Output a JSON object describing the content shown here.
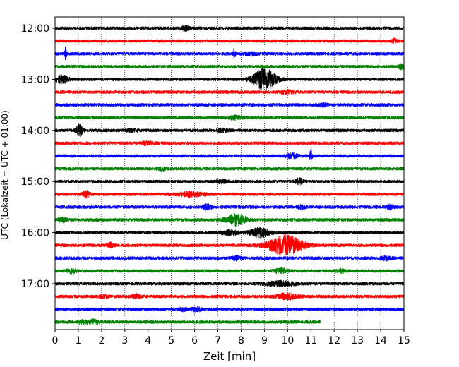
{
  "chart_data": {
    "type": "line",
    "title": "",
    "xlabel": "Zeit  [min]",
    "ylabel": "UTC (Lokalzeit = UTC + 01:00)",
    "xlim": [
      0,
      15
    ],
    "x_ticks": [
      "0",
      "1",
      "2",
      "3",
      "4",
      "5",
      "6",
      "7",
      "8",
      "9",
      "10",
      "11",
      "12",
      "13",
      "14",
      "15"
    ],
    "y_ticks": [
      {
        "label": "12:00",
        "trace_index": 0
      },
      {
        "label": "13:00",
        "trace_index": 4
      },
      {
        "label": "14:00",
        "trace_index": 8
      },
      {
        "label": "15:00",
        "trace_index": 12
      },
      {
        "label": "16:00",
        "trace_index": 16
      },
      {
        "label": "17:00",
        "trace_index": 20
      }
    ],
    "grid": "vertical dotted",
    "colors": [
      "#000000",
      "#ff0000",
      "#0000ff",
      "#008000"
    ],
    "traces": [
      {
        "start": "12:00",
        "color": "#000000",
        "end_min": 15,
        "events": [
          [
            5.6,
            0.15,
            3
          ]
        ]
      },
      {
        "start": "12:15",
        "color": "#ff0000",
        "end_min": 15,
        "events": [
          [
            14.6,
            0.1,
            2.5
          ]
        ]
      },
      {
        "start": "12:30",
        "color": "#0000ff",
        "end_min": 15,
        "events": [
          [
            0.45,
            0.05,
            8
          ],
          [
            7.7,
            0.05,
            6
          ],
          [
            8.4,
            0.3,
            2
          ]
        ]
      },
      {
        "start": "12:45",
        "color": "#008000",
        "end_min": 15,
        "events": [
          [
            14.9,
            0.1,
            4
          ]
        ]
      },
      {
        "start": "13:00",
        "color": "#000000",
        "end_min": 15,
        "events": [
          [
            0.3,
            0.25,
            5
          ],
          [
            9.0,
            0.45,
            16
          ]
        ]
      },
      {
        "start": "13:15",
        "color": "#ff0000",
        "end_min": 15,
        "events": [
          [
            10.0,
            0.3,
            2
          ]
        ]
      },
      {
        "start": "13:30",
        "color": "#0000ff",
        "end_min": 15,
        "events": [
          [
            11.5,
            0.2,
            2
          ]
        ]
      },
      {
        "start": "13:45",
        "color": "#008000",
        "end_min": 15,
        "events": [
          [
            7.7,
            0.3,
            2
          ]
        ]
      },
      {
        "start": "14:00",
        "color": "#000000",
        "end_min": 15,
        "events": [
          [
            1.05,
            0.12,
            9
          ],
          [
            3.3,
            0.2,
            2
          ],
          [
            7.2,
            0.2,
            2.5
          ]
        ]
      },
      {
        "start": "14:15",
        "color": "#ff0000",
        "end_min": 15,
        "events": [
          [
            4.0,
            0.3,
            2
          ]
        ]
      },
      {
        "start": "14:30",
        "color": "#0000ff",
        "end_min": 15,
        "events": [
          [
            10.2,
            0.25,
            3
          ],
          [
            11.0,
            0.05,
            8
          ]
        ]
      },
      {
        "start": "14:45",
        "color": "#008000",
        "end_min": 15,
        "events": [
          [
            4.6,
            0.2,
            1.5
          ]
        ]
      },
      {
        "start": "15:00",
        "color": "#000000",
        "end_min": 15,
        "events": [
          [
            10.5,
            0.15,
            4
          ],
          [
            7.2,
            0.2,
            2
          ]
        ]
      },
      {
        "start": "15:15",
        "color": "#ff0000",
        "end_min": 15,
        "events": [
          [
            1.35,
            0.15,
            4
          ],
          [
            5.8,
            0.6,
            2.5
          ]
        ]
      },
      {
        "start": "15:30",
        "color": "#0000ff",
        "end_min": 15,
        "events": [
          [
            6.55,
            0.15,
            4
          ],
          [
            10.6,
            0.15,
            3
          ],
          [
            14.4,
            0.15,
            2.5
          ]
        ]
      },
      {
        "start": "15:45",
        "color": "#008000",
        "end_min": 15,
        "events": [
          [
            7.8,
            0.4,
            8
          ],
          [
            0.3,
            0.2,
            2.5
          ]
        ]
      },
      {
        "start": "16:00",
        "color": "#000000",
        "end_min": 15,
        "events": [
          [
            7.5,
            0.35,
            3
          ],
          [
            8.8,
            0.4,
            6
          ]
        ]
      },
      {
        "start": "16:15",
        "color": "#ff0000",
        "end_min": 15,
        "events": [
          [
            9.9,
            0.7,
            14
          ],
          [
            2.4,
            0.15,
            3
          ]
        ]
      },
      {
        "start": "16:30",
        "color": "#0000ff",
        "end_min": 15,
        "events": [
          [
            7.8,
            0.2,
            2
          ],
          [
            14.2,
            0.2,
            2.5
          ]
        ]
      },
      {
        "start": "16:45",
        "color": "#008000",
        "end_min": 15,
        "events": [
          [
            0.7,
            0.2,
            2.5
          ],
          [
            9.7,
            0.25,
            3
          ],
          [
            12.3,
            0.2,
            2
          ]
        ]
      },
      {
        "start": "17:00",
        "color": "#000000",
        "end_min": 15,
        "events": [
          [
            9.7,
            0.6,
            3
          ]
        ]
      },
      {
        "start": "17:15",
        "color": "#ff0000",
        "end_min": 15,
        "events": [
          [
            10.0,
            0.4,
            4
          ],
          [
            3.5,
            0.2,
            2.5
          ],
          [
            2.1,
            0.2,
            2
          ]
        ]
      },
      {
        "start": "17:30",
        "color": "#0000ff",
        "end_min": 15,
        "events": [
          [
            6.1,
            0.2,
            2.5
          ],
          [
            5.5,
            0.15,
            2
          ]
        ]
      },
      {
        "start": "17:45",
        "color": "#008000",
        "end_min": 11.4,
        "events": [
          [
            1.65,
            0.2,
            3
          ],
          [
            1.2,
            0.2,
            2
          ]
        ]
      }
    ]
  }
}
